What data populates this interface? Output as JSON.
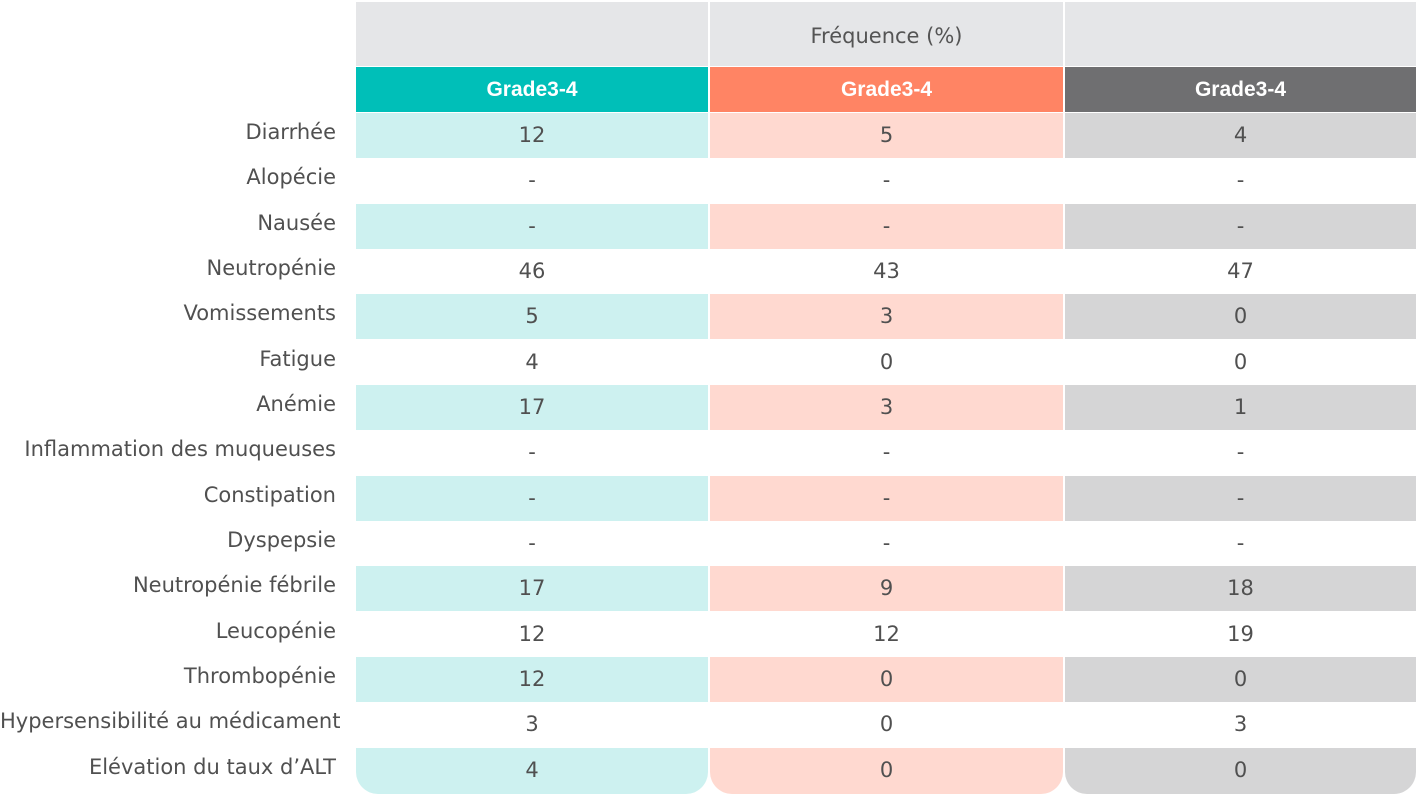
{
  "table": {
    "header_title": "Fréquence (%)",
    "columns": [
      {
        "label": "Grade3-4",
        "header_color": "#00bfb8",
        "shade_color": "#cdf1f0"
      },
      {
        "label": "Grade3-4",
        "header_color": "#ff8464",
        "shade_color": "#ffd9d0"
      },
      {
        "label": "Grade3-4",
        "header_color": "#6f6f71",
        "shade_color": "#d5d5d6"
      }
    ],
    "rows": [
      {
        "label": "Diarrhée",
        "values": [
          "12",
          "5",
          "4"
        ]
      },
      {
        "label": "Alopécie",
        "values": [
          "-",
          "-",
          "-"
        ]
      },
      {
        "label": "Nausée",
        "values": [
          "-",
          "-",
          "-"
        ]
      },
      {
        "label": "Neutropénie",
        "values": [
          "46",
          "43",
          "47"
        ]
      },
      {
        "label": "Vomissements",
        "values": [
          "5",
          "3",
          "0"
        ]
      },
      {
        "label": "Fatigue",
        "values": [
          "4",
          "0",
          "0"
        ]
      },
      {
        "label": "Anémie",
        "values": [
          "17",
          "3",
          "1"
        ]
      },
      {
        "label": "Inflammation des muqueuses",
        "values": [
          "-",
          "-",
          "-"
        ]
      },
      {
        "label": "Constipation",
        "values": [
          "-",
          "-",
          "-"
        ]
      },
      {
        "label": "Dyspepsie",
        "values": [
          "-",
          "-",
          "-"
        ]
      },
      {
        "label": "Neutropénie fébrile",
        "values": [
          "17",
          "9",
          "18"
        ]
      },
      {
        "label": "Leucopénie",
        "values": [
          "12",
          "12",
          "19"
        ]
      },
      {
        "label": "Thrombopénie",
        "values": [
          "12",
          "0",
          "0"
        ]
      },
      {
        "label": "Hypersensibilité au médicament",
        "values": [
          "3",
          "0",
          "3"
        ]
      },
      {
        "label": "Elévation du taux d’ALT",
        "values": [
          "4",
          "0",
          "0"
        ]
      }
    ]
  }
}
